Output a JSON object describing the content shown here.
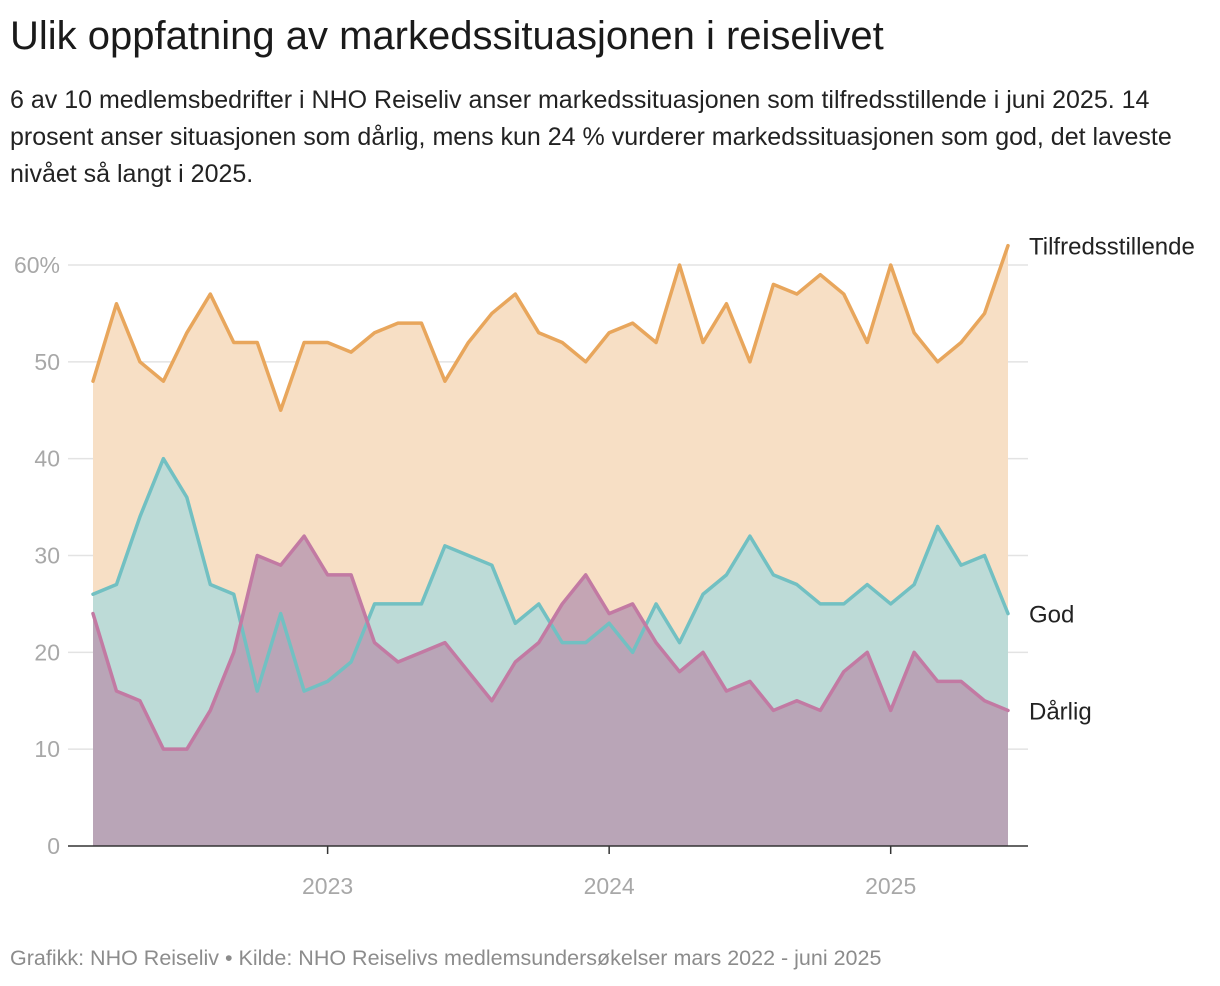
{
  "title": "Ulik oppfatning av markedssituasjonen i reiselivet",
  "subtitle": "6 av 10 medlemsbedrifter i NHO Reiseliv anser markedssituasjonen som tilfredsstillende i juni 2025. 14 prosent anser situasjonen som dårlig, mens kun 24 % vurderer markedssituasjonen som god, det laveste nivået så langt i 2025.",
  "footer": "Grafikk: NHO Reiseliv • Kilde: NHO Reiselivs medlemsundersøkelser mars 2022 - juni 2025",
  "chart_data": {
    "type": "area",
    "x_start": "2022-03",
    "x_end": "2025-06",
    "ylim": [
      0,
      60
    ],
    "yticks": [
      0,
      10,
      20,
      30,
      40,
      50,
      60
    ],
    "ytick_labels": [
      "0",
      "10",
      "20",
      "30",
      "40",
      "50",
      "60%"
    ],
    "xticks": [
      "2023",
      "2024",
      "2025"
    ],
    "grid": true,
    "legend": "inline labels at line ends",
    "series": [
      {
        "name": "Tilfredsstillende",
        "color": "#e8a65c",
        "fill": "#f7dfc5",
        "values": [
          48,
          56,
          50,
          48,
          53,
          57,
          52,
          52,
          45,
          52,
          52,
          51,
          53,
          54,
          54,
          48,
          52,
          55,
          57,
          53,
          52,
          50,
          53,
          54,
          52,
          60,
          52,
          56,
          50,
          58,
          57,
          59,
          57,
          52,
          60,
          53,
          50,
          52,
          55,
          62
        ]
      },
      {
        "name": "God",
        "color": "#72c0c2",
        "fill": "#b0dadb",
        "values": [
          26,
          27,
          34,
          40,
          36,
          27,
          26,
          16,
          24,
          16,
          17,
          19,
          25,
          25,
          25,
          31,
          30,
          29,
          23,
          25,
          21,
          21,
          23,
          20,
          25,
          21,
          26,
          28,
          32,
          28,
          27,
          25,
          25,
          27,
          25,
          27,
          33,
          29,
          30,
          24
        ]
      },
      {
        "name": "Dårlig",
        "color": "#c27aa3",
        "fill": "#b898b0",
        "values": [
          24,
          16,
          15,
          10,
          10,
          14,
          20,
          30,
          29,
          32,
          28,
          28,
          21,
          19,
          20,
          21,
          18,
          15,
          19,
          21,
          25,
          28,
          24,
          25,
          21,
          18,
          20,
          16,
          17,
          14,
          15,
          14,
          18,
          20,
          14,
          20,
          17,
          17,
          15,
          14
        ]
      }
    ]
  }
}
